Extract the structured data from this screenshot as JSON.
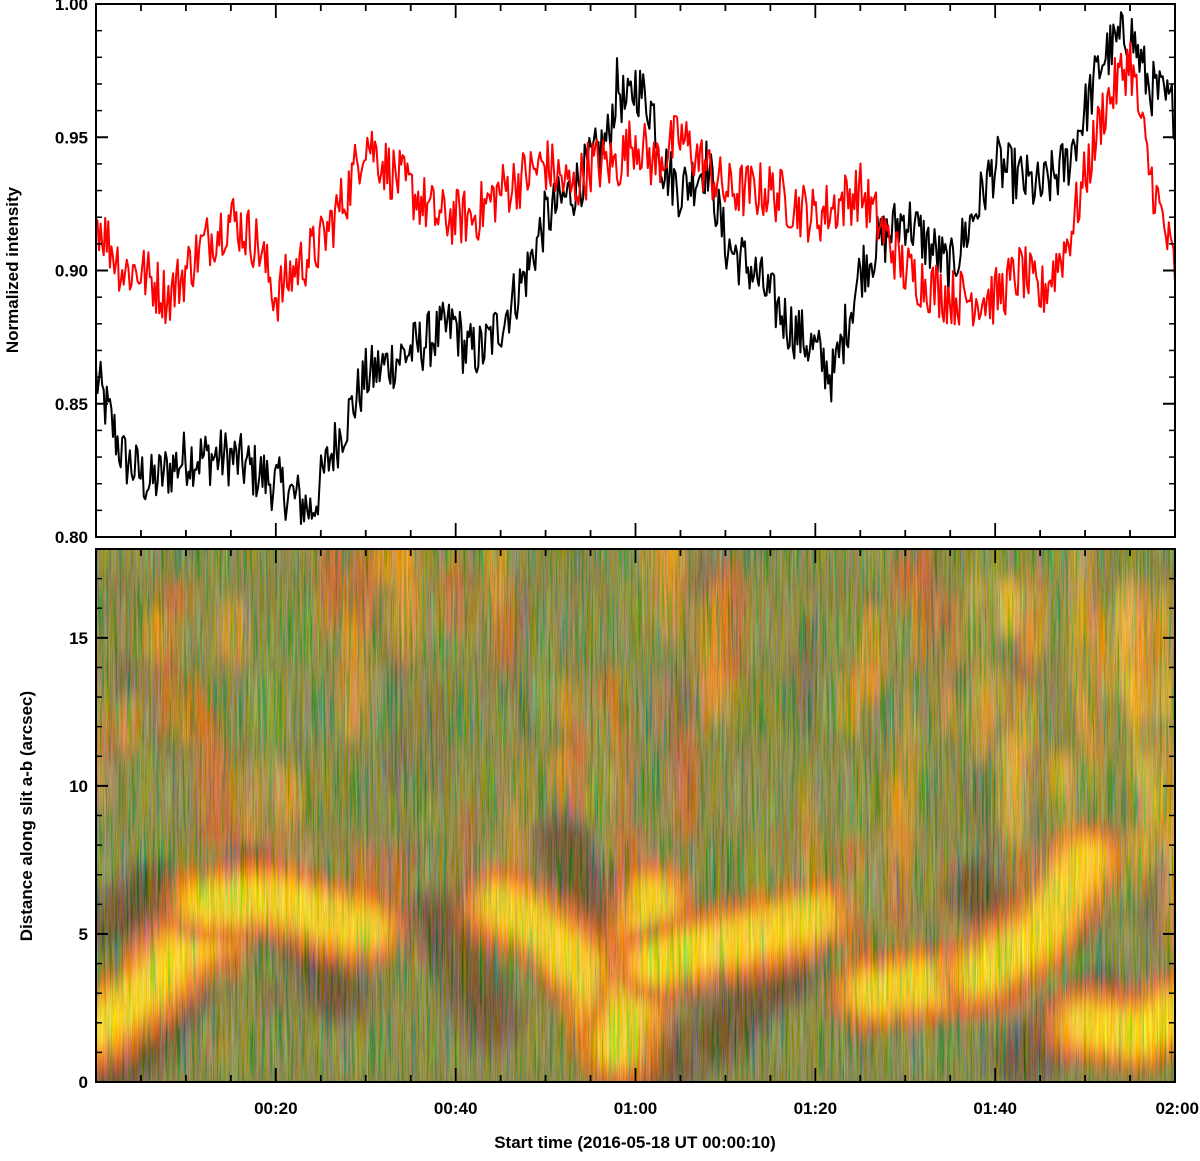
{
  "chart_data": [
    {
      "type": "line",
      "panel": "top",
      "title": "",
      "xlabel": "",
      "ylabel": "Normalized intensity",
      "xlim": [
        0,
        120
      ],
      "ylim": [
        0.8,
        1.0
      ],
      "yticks": [
        0.8,
        0.85,
        0.9,
        0.95,
        1.0
      ],
      "ytick_labels": [
        "0.80",
        "0.85",
        "0.90",
        "0.95",
        "1.00"
      ],
      "x_units": "minutes from 00:00:10 UT",
      "series": [
        {
          "name": "black curve",
          "color": "#000000",
          "x": [
            0,
            3,
            6,
            10,
            15,
            20,
            24,
            26,
            30,
            35,
            40,
            41,
            43,
            45,
            48,
            50,
            53,
            55,
            57,
            58,
            59,
            60,
            62,
            63,
            65,
            68,
            70,
            73,
            77,
            80,
            82,
            85,
            87,
            90,
            95,
            100,
            105,
            108,
            110,
            112,
            115,
            117,
            120
          ],
          "y": [
            0.86,
            0.83,
            0.82,
            0.83,
            0.83,
            0.82,
            0.81,
            0.83,
            0.86,
            0.87,
            0.88,
            0.87,
            0.87,
            0.88,
            0.9,
            0.92,
            0.93,
            0.94,
            0.95,
            0.97,
            0.96,
            0.97,
            0.96,
            0.94,
            0.93,
            0.94,
            0.91,
            0.9,
            0.88,
            0.87,
            0.86,
            0.9,
            0.91,
            0.92,
            0.9,
            0.94,
            0.93,
            0.94,
            0.96,
            0.98,
            0.99,
            0.97,
            0.96
          ]
        },
        {
          "name": "red curve",
          "color": "#ff0000",
          "x": [
            0,
            3,
            5,
            8,
            12,
            15,
            18,
            20,
            22,
            25,
            28,
            30,
            32,
            35,
            38,
            40,
            42,
            45,
            50,
            53,
            55,
            58,
            60,
            62,
            65,
            70,
            75,
            80,
            85,
            90,
            95,
            100,
            103,
            105,
            108,
            112,
            115,
            117,
            120
          ],
          "y": [
            0.92,
            0.9,
            0.9,
            0.89,
            0.91,
            0.92,
            0.91,
            0.89,
            0.9,
            0.91,
            0.93,
            0.95,
            0.94,
            0.93,
            0.92,
            0.92,
            0.92,
            0.93,
            0.94,
            0.93,
            0.94,
            0.94,
            0.95,
            0.94,
            0.95,
            0.93,
            0.93,
            0.92,
            0.93,
            0.9,
            0.89,
            0.89,
            0.9,
            0.89,
            0.91,
            0.96,
            0.98,
            0.94,
            0.9
          ]
        }
      ]
    },
    {
      "type": "heatmap",
      "panel": "bottom",
      "title": "",
      "xlabel": "Start time (2016-05-18 UT 00:00:10)",
      "ylabel": "Distance along slit a-b (arcsec)",
      "xlim": [
        0,
        120
      ],
      "ylim": [
        0,
        18
      ],
      "x_units": "minutes",
      "y_units": "arcsec",
      "xticks": [
        20,
        40,
        60,
        80,
        100,
        120
      ],
      "xtick_labels": [
        "00:20",
        "00:40",
        "01:00",
        "01:20",
        "01:40",
        "02:00"
      ],
      "yticks": [
        0,
        5,
        10,
        15
      ],
      "ytick_labels": [
        "0",
        "5",
        "10",
        "15"
      ],
      "colormap": [
        "#05081a",
        "#0e3050",
        "#1a6a5a",
        "#2a8e3e",
        "#cc2a14",
        "#ff8a00",
        "#ffd21a",
        "#ffff00"
      ],
      "bright_ridges": [
        {
          "x": [
            0,
            6,
            10,
            14
          ],
          "y": [
            1.8,
            3.2,
            4.6,
            5.4
          ]
        },
        {
          "x": [
            12,
            20,
            26,
            30
          ],
          "y": [
            6.0,
            6.2,
            5.5,
            5.2
          ]
        },
        {
          "x": [
            45,
            50,
            55,
            58
          ],
          "y": [
            6.0,
            5.0,
            3.5,
            1.0
          ]
        },
        {
          "x": [
            58,
            60,
            62
          ],
          "y": [
            1.2,
            3.0,
            6.2
          ]
        },
        {
          "x": [
            62,
            68,
            74,
            80
          ],
          "y": [
            4.0,
            4.6,
            5.0,
            5.6
          ]
        },
        {
          "x": [
            86,
            92,
            100
          ],
          "y": [
            3.0,
            3.3,
            3.6
          ]
        },
        {
          "x": [
            98,
            105,
            110
          ],
          "y": [
            3.6,
            5.0,
            7.5
          ]
        },
        {
          "x": [
            110,
            116,
            120
          ],
          "y": [
            2.0,
            1.6,
            2.4
          ]
        }
      ],
      "dark_ridges": [
        {
          "x": [
            2,
            6,
            9
          ],
          "y": [
            0.3,
            1.5,
            3.0
          ]
        },
        {
          "x": [
            2,
            4,
            6
          ],
          "y": [
            5.5,
            6.0,
            6.5
          ]
        },
        {
          "x": [
            17,
            22,
            27
          ],
          "y": [
            7.0,
            5.5,
            3.0
          ]
        },
        {
          "x": [
            38,
            41,
            44
          ],
          "y": [
            5.5,
            4.0,
            2.0
          ]
        },
        {
          "x": [
            52,
            55,
            58
          ],
          "y": [
            8.0,
            6.0,
            4.5
          ]
        },
        {
          "x": [
            60,
            64,
            68
          ],
          "y": [
            0.3,
            0.8,
            1.5
          ]
        },
        {
          "x": [
            69,
            73,
            77
          ],
          "y": [
            1.5,
            2.8,
            3.8
          ]
        },
        {
          "x": [
            98,
            102,
            108
          ],
          "y": [
            6.5,
            5.0,
            5.5
          ]
        },
        {
          "x": [
            103,
            108,
            112
          ],
          "y": [
            0.8,
            2.0,
            2.8
          ]
        }
      ]
    }
  ]
}
